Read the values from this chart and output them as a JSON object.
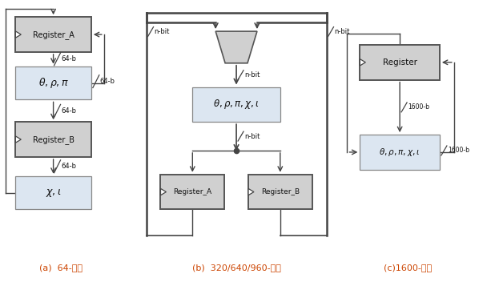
{
  "bg_color": "#ffffff",
  "box_reg_fill": "#d0d0d0",
  "box_op_fill": "#dce6f1",
  "box_reg_edge": "#555555",
  "box_op_edge": "#888888",
  "line_color": "#444444",
  "label_color": "#cc4400",
  "text_color": "#111111",
  "fig_width": 6.18,
  "fig_height": 3.62,
  "caption_a": "(a)  64-비트",
  "caption_b": "(b)  320/640/960-비트",
  "caption_c": "(c)1600-비트"
}
